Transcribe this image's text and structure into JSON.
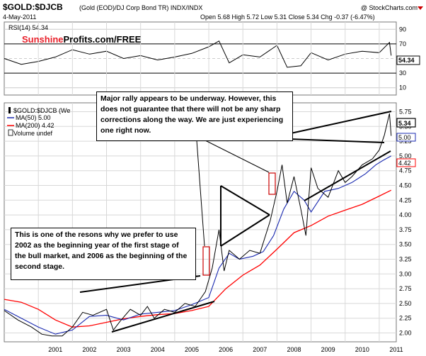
{
  "header": {
    "title": "$GOLD:$DJCB",
    "subtitle": "(Gold (EOD)/DJ Corp Bond TR)  INDX/INDX",
    "date": "4-May-2011",
    "quote": "Open 5.68  High 5.72  Low 5.31  Close 5.34  Chg -0.37 (-6.47%)",
    "copyright": "@ StockCharts.com"
  },
  "brand": {
    "part1": "Sunshine",
    "part2": "Profits.com/FREE",
    "color1": "#e8202a",
    "color2": "#000000"
  },
  "rsi": {
    "label": "RSI(14) 54.34",
    "current_label": "54.34",
    "levels": [
      90,
      70,
      50,
      30,
      10
    ],
    "ylim": [
      0,
      100
    ]
  },
  "legend": {
    "price": "$GOLD:$DJCB (We",
    "ma50": "MA(50) 5.00",
    "ma200": "MA(200) 4.42",
    "volume": "Volume undef"
  },
  "colors": {
    "price": "#000000",
    "down": "#cc0000",
    "ma50": "#1a2ab0",
    "ma200": "#ff0000",
    "box": "#cc0000",
    "rsi_line": "#000000",
    "rsi_fill": "#2e7d32"
  },
  "annotations": {
    "top": "Major rally appears to be underway. However, this does not guarantee that there will not be any sharp corrections along the way. We are just experiencing one right now.",
    "bottom": "This is one of the resons why we prefer to use 2002 as the beginning year of the first stage of the bull market, and 2006 as the beginning of the second stage."
  },
  "chart_data": {
    "type": "line",
    "title": "$GOLD:$DJCB",
    "xlabel": "",
    "ylabel": "",
    "x_ticks": [
      "2001",
      "2002",
      "2003",
      "2004",
      "2005",
      "2006",
      "2007",
      "2008",
      "2009",
      "2010",
      "2011"
    ],
    "y_ticks": [
      2.0,
      2.25,
      2.5,
      2.75,
      3.0,
      3.25,
      3.5,
      3.75,
      4.0,
      4.25,
      4.5,
      4.75,
      5.0,
      5.25,
      5.5,
      5.75
    ],
    "y_tick_labels": [
      "2.00",
      "2.25",
      "2.50",
      "2.75",
      "3.00",
      "3.25",
      "3.50",
      "3.75",
      "4.00",
      "4.25",
      "4.50",
      "4.75",
      "5.00",
      "5.25",
      "5.50",
      "5.75"
    ],
    "ylim": [
      1.85,
      5.9
    ],
    "xlim": [
      2000.0,
      2011.5
    ],
    "grid": true,
    "current_value_labels": [
      "5.34",
      "5.00",
      "4.42"
    ],
    "series": [
      {
        "name": "$GOLD:$DJCB",
        "x": [
          2000.0,
          2000.4,
          2000.8,
          2001.1,
          2001.4,
          2001.7,
          2002.0,
          2002.3,
          2002.6,
          2003.0,
          2003.2,
          2003.4,
          2003.7,
          2004.0,
          2004.2,
          2004.4,
          2004.7,
          2005.0,
          2005.3,
          2005.6,
          2005.9,
          2006.1,
          2006.3,
          2006.45,
          2006.6,
          2006.9,
          2007.2,
          2007.5,
          2007.8,
          2008.0,
          2008.15,
          2008.3,
          2008.5,
          2008.7,
          2008.85,
          2009.0,
          2009.2,
          2009.5,
          2009.8,
          2010.0,
          2010.2,
          2010.5,
          2010.8,
          2011.0,
          2011.15,
          2011.3,
          2011.35
        ],
        "values": [
          2.38,
          2.22,
          2.1,
          1.98,
          1.95,
          1.95,
          2.1,
          2.35,
          2.3,
          2.4,
          2.05,
          2.2,
          2.4,
          2.3,
          2.45,
          2.25,
          2.4,
          2.35,
          2.5,
          2.45,
          2.7,
          3.1,
          3.75,
          3.05,
          3.4,
          3.25,
          3.4,
          3.35,
          3.9,
          4.4,
          4.85,
          4.2,
          4.65,
          4.1,
          3.65,
          4.8,
          4.45,
          4.3,
          4.75,
          4.55,
          4.65,
          4.85,
          4.95,
          5.1,
          5.35,
          5.72,
          5.34
        ]
      },
      {
        "name": "MA(50) 5.00",
        "x": [
          2000.0,
          2000.5,
          2001.0,
          2001.5,
          2002.0,
          2002.5,
          2003.0,
          2003.5,
          2004.0,
          2004.5,
          2005.0,
          2005.5,
          2006.0,
          2006.3,
          2006.6,
          2006.9,
          2007.3,
          2007.6,
          2007.9,
          2008.2,
          2008.5,
          2008.8,
          2009.0,
          2009.4,
          2009.8,
          2010.2,
          2010.6,
          2010.9,
          2011.1,
          2011.35
        ],
        "values": [
          2.4,
          2.25,
          2.1,
          1.98,
          2.05,
          2.28,
          2.3,
          2.22,
          2.32,
          2.35,
          2.38,
          2.48,
          2.6,
          3.1,
          3.35,
          3.25,
          3.3,
          3.38,
          3.65,
          4.1,
          4.4,
          4.25,
          4.05,
          4.4,
          4.45,
          4.55,
          4.7,
          4.85,
          4.92,
          5.0
        ]
      },
      {
        "name": "MA(200) 4.42",
        "x": [
          2000.0,
          2000.5,
          2001.0,
          2001.5,
          2002.0,
          2002.5,
          2003.0,
          2003.5,
          2004.0,
          2004.5,
          2005.0,
          2005.5,
          2006.0,
          2006.5,
          2007.0,
          2007.5,
          2008.0,
          2008.5,
          2009.0,
          2009.5,
          2010.0,
          2010.5,
          2011.0,
          2011.35
        ],
        "values": [
          2.57,
          2.52,
          2.4,
          2.22,
          2.1,
          2.12,
          2.18,
          2.24,
          2.28,
          2.31,
          2.33,
          2.38,
          2.45,
          2.75,
          2.98,
          3.15,
          3.42,
          3.7,
          3.82,
          3.98,
          4.08,
          4.18,
          4.32,
          4.42
        ]
      }
    ],
    "rsi_series": {
      "name": "RSI(14) 54.34",
      "x": [
        2000.0,
        2000.5,
        2001.0,
        2001.5,
        2002.0,
        2002.5,
        2003.0,
        2003.5,
        2004.0,
        2004.5,
        2005.0,
        2005.5,
        2006.0,
        2006.3,
        2006.6,
        2007.0,
        2007.5,
        2008.0,
        2008.3,
        2008.7,
        2009.0,
        2009.5,
        2010.0,
        2010.5,
        2011.0,
        2011.3,
        2011.35
      ],
      "values": [
        50,
        42,
        46,
        52,
        62,
        56,
        60,
        50,
        54,
        48,
        52,
        57,
        66,
        74,
        44,
        55,
        52,
        68,
        38,
        40,
        58,
        48,
        56,
        60,
        58,
        72,
        54
      ]
    }
  }
}
